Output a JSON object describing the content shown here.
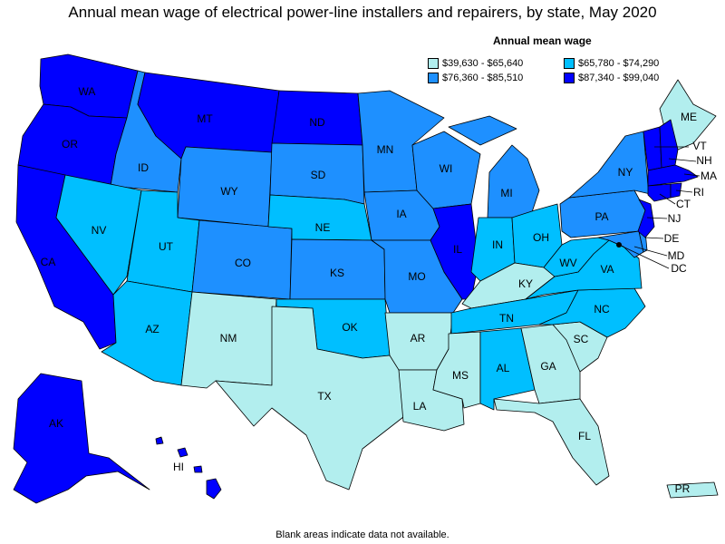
{
  "title": "Annual mean wage of electrical power-line installers and repairers, by state, May 2020",
  "legend": {
    "title": "Annual mean wage",
    "items": [
      {
        "label": "$39,630 - $65,640",
        "color": "#b2eeee"
      },
      {
        "label": "$65,780 - $74,290",
        "color": "#00bfff"
      },
      {
        "label": "$76,360 - $85,510",
        "color": "#1e90ff"
      },
      {
        "label": "$87,340 - $99,040",
        "color": "#0000ff"
      }
    ]
  },
  "note": "Blank areas indicate data not available.",
  "states": {
    "WA": {
      "label": "WA",
      "tier": 4
    },
    "OR": {
      "label": "OR",
      "tier": 4
    },
    "CA": {
      "label": "CA",
      "tier": 4
    },
    "ID": {
      "label": "ID",
      "tier": 3
    },
    "NV": {
      "label": "NV",
      "tier": 2
    },
    "MT": {
      "label": "MT",
      "tier": 4
    },
    "WY": {
      "label": "WY",
      "tier": 3
    },
    "UT": {
      "label": "UT",
      "tier": 2
    },
    "AZ": {
      "label": "AZ",
      "tier": 2
    },
    "CO": {
      "label": "CO",
      "tier": 3
    },
    "NM": {
      "label": "NM",
      "tier": 1
    },
    "ND": {
      "label": "ND",
      "tier": 4
    },
    "SD": {
      "label": "SD",
      "tier": 3
    },
    "NE": {
      "label": "NE",
      "tier": 2
    },
    "KS": {
      "label": "KS",
      "tier": 3
    },
    "OK": {
      "label": "OK",
      "tier": 2
    },
    "TX": {
      "label": "TX",
      "tier": 1
    },
    "MN": {
      "label": "MN",
      "tier": 3
    },
    "IA": {
      "label": "IA",
      "tier": 3
    },
    "MO": {
      "label": "MO",
      "tier": 3
    },
    "AR": {
      "label": "AR",
      "tier": 1
    },
    "LA": {
      "label": "LA",
      "tier": 1
    },
    "WI": {
      "label": "WI",
      "tier": 3
    },
    "IL": {
      "label": "IL",
      "tier": 4
    },
    "MI": {
      "label": "MI",
      "tier": 3
    },
    "IN": {
      "label": "IN",
      "tier": 2
    },
    "OH": {
      "label": "OH",
      "tier": 2
    },
    "KY": {
      "label": "KY",
      "tier": 1
    },
    "TN": {
      "label": "TN",
      "tier": 2
    },
    "MS": {
      "label": "MS",
      "tier": 1
    },
    "AL": {
      "label": "AL",
      "tier": 2
    },
    "GA": {
      "label": "GA",
      "tier": 1
    },
    "FL": {
      "label": "FL",
      "tier": 1
    },
    "SC": {
      "label": "SC",
      "tier": 1
    },
    "NC": {
      "label": "NC",
      "tier": 2
    },
    "VA": {
      "label": "VA",
      "tier": 2
    },
    "WV": {
      "label": "WV",
      "tier": 2
    },
    "PA": {
      "label": "PA",
      "tier": 3
    },
    "NY": {
      "label": "NY",
      "tier": 3
    },
    "ME": {
      "label": "ME",
      "tier": 1
    },
    "VT": {
      "label": "VT",
      "tier": 4
    },
    "NH": {
      "label": "NH",
      "tier": 4
    },
    "MA": {
      "label": "MA",
      "tier": 4
    },
    "RI": {
      "label": "RI",
      "tier": 4
    },
    "CT": {
      "label": "CT",
      "tier": 4
    },
    "NJ": {
      "label": "NJ",
      "tier": 4
    },
    "DE": {
      "label": "DE",
      "tier": 3
    },
    "MD": {
      "label": "MD",
      "tier": 3
    },
    "DC": {
      "label": "DC",
      "tier": 4
    },
    "AK": {
      "label": "AK",
      "tier": 4
    },
    "HI": {
      "label": "HI",
      "tier": 4
    },
    "PR": {
      "label": "PR",
      "tier": 1
    }
  }
}
